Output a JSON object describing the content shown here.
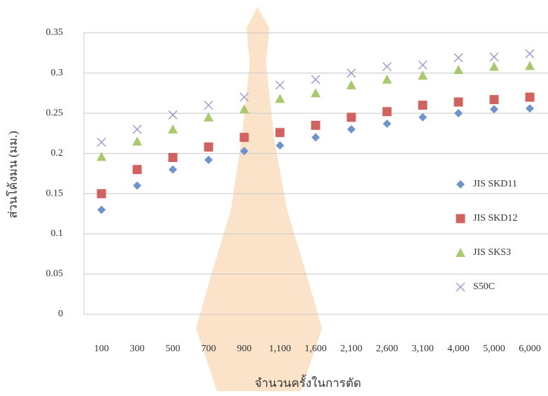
{
  "chart_data": {
    "type": "scatter",
    "x_label": "จำนวนครั้งในการตัด",
    "y_label": "ส่วนโค้งมน (มม.)",
    "categories": [
      "100",
      "300",
      "500",
      "700",
      "900",
      "1,100",
      "1,600",
      "2,100",
      "2,600",
      "3,100",
      "4,000",
      "5,000",
      "6,000"
    ],
    "series": [
      {
        "name": "JIS SKD11",
        "color": "#6f94cc",
        "marker": "diamond",
        "values": [
          0.13,
          0.16,
          0.18,
          0.192,
          0.203,
          0.21,
          0.22,
          0.23,
          0.237,
          0.245,
          0.25,
          0.255,
          0.256
        ]
      },
      {
        "name": "JIS SKD12",
        "color": "#d0625f",
        "marker": "square",
        "values": [
          0.15,
          0.18,
          0.195,
          0.208,
          0.22,
          0.226,
          0.235,
          0.245,
          0.252,
          0.26,
          0.264,
          0.267,
          0.27
        ]
      },
      {
        "name": "JIS SKS3",
        "color": "#a9c96e",
        "marker": "triangle",
        "values": [
          0.196,
          0.215,
          0.23,
          0.245,
          0.255,
          0.268,
          0.275,
          0.285,
          0.292,
          0.297,
          0.304,
          0.308,
          0.309
        ]
      },
      {
        "name": "S50C",
        "color": "#a899d0",
        "marker": "x",
        "values": [
          0.214,
          0.23,
          0.248,
          0.26,
          0.27,
          0.285,
          0.292,
          0.3,
          0.308,
          0.31,
          0.319,
          0.32,
          0.324
        ]
      }
    ],
    "ylim": [
      0,
      0.35
    ],
    "yticks": [
      0,
      0.05,
      0.1,
      0.15,
      0.2,
      0.25,
      0.3,
      0.35
    ],
    "grid": true,
    "legend": "right"
  }
}
